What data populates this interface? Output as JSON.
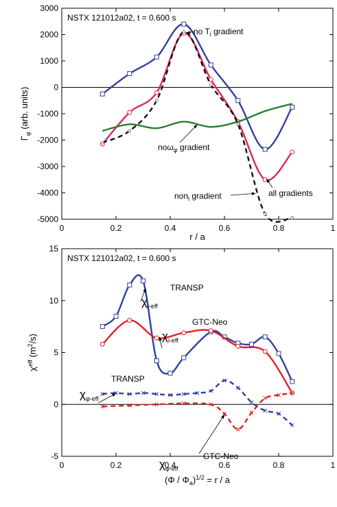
{
  "chart_data": [
    {
      "type": "line",
      "title": "NSTX 121012a02, t = 0.600 s",
      "xlabel": "r / a",
      "ylabel": "Γφ (arb. units)",
      "xlim": [
        0,
        1
      ],
      "ylim": [
        -5000,
        3000
      ],
      "xticks": [
        "0",
        "0.2",
        "0.4",
        "0.6",
        "0.8",
        "1"
      ],
      "yticks": [
        "3000",
        "2000",
        "1000",
        "0",
        "-1000",
        "-2000",
        "-3000",
        "-4000",
        "-5000"
      ],
      "grid": false,
      "series": [
        {
          "name": "no Ti gradient",
          "color": "#2e3f9f",
          "marker": "square",
          "dash": false,
          "x": [
            0.15,
            0.25,
            0.35,
            0.45,
            0.55,
            0.65,
            0.75,
            0.85
          ],
          "y": [
            -250,
            520,
            1150,
            2400,
            850,
            -500,
            -2350,
            -750
          ]
        },
        {
          "name": "all gradients",
          "color": "#e0245e",
          "marker": "circle",
          "dash": false,
          "x": [
            0.15,
            0.25,
            0.35,
            0.45,
            0.55,
            0.65,
            0.75,
            0.85
          ],
          "y": [
            -2150,
            -950,
            -200,
            2050,
            300,
            -1300,
            -3500,
            -2450
          ]
        },
        {
          "name": "noωφ gradient",
          "color": "#2e7d32",
          "marker": "none",
          "dash": false,
          "x": [
            0.15,
            0.25,
            0.35,
            0.45,
            0.55,
            0.65,
            0.75,
            0.85
          ],
          "y": [
            -1650,
            -1400,
            -1550,
            -1300,
            -1500,
            -1300,
            -900,
            -620
          ]
        },
        {
          "name": "noni gradient",
          "color": "#111111",
          "marker": "small-circle",
          "dash": true,
          "x": [
            0.15,
            0.25,
            0.35,
            0.45,
            0.55,
            0.65,
            0.75,
            0.85
          ],
          "y": [
            -2100,
            -1650,
            -500,
            2100,
            100,
            -1400,
            -4800,
            -4950
          ]
        }
      ],
      "annotations": [
        {
          "text": "no T",
          "sub": "i",
          "rest": " gradient",
          "ax": 0.45,
          "ay": 2050
        },
        {
          "text": "no",
          "sub": "",
          "rest": "ω",
          "sub2": "φ",
          "rest2": " gradient",
          "ax": 0.5,
          "ay": -1400
        },
        {
          "text": "non",
          "sub": "i",
          "rest": " gradient",
          "ax": 0.72,
          "ay": -4000
        },
        {
          "text": "all gradients",
          "ax": 0.75,
          "ay": -3480
        }
      ]
    },
    {
      "type": "line",
      "title": "NSTX 121012a02, t = 0.600 s",
      "xlabel": "(Φ / Φa)1/2 = r / a",
      "ylabel": "χeff (m2/s)",
      "xlim": [
        0,
        1
      ],
      "ylim": [
        -5,
        15
      ],
      "xticks": [
        "0",
        "0.2",
        "0.4",
        "0.6",
        "0.8",
        "1"
      ],
      "yticks": [
        "15",
        "10",
        "5",
        "0",
        "-5"
      ],
      "grid": false,
      "series": [
        {
          "name": "χi-eff TRANSP",
          "color": "#2e3f9f",
          "marker": "square",
          "dash": false,
          "x": [
            0.15,
            0.2,
            0.25,
            0.3,
            0.35,
            0.4,
            0.45,
            0.55,
            0.6,
            0.65,
            0.7,
            0.75,
            0.8,
            0.85
          ],
          "y": [
            7.5,
            8.5,
            11.5,
            11.9,
            4.2,
            3.0,
            4.5,
            7.0,
            6.5,
            5.9,
            5.8,
            6.5,
            4.9,
            2.2
          ]
        },
        {
          "name": "χi-eff GTC-Neo",
          "color": "#e02020",
          "marker": "circle",
          "dash": false,
          "x": [
            0.15,
            0.25,
            0.35,
            0.45,
            0.55,
            0.65,
            0.75,
            0.85
          ],
          "y": [
            5.8,
            8.1,
            6.4,
            6.9,
            7.1,
            5.6,
            5.1,
            1.1
          ]
        },
        {
          "name": "χφ-eff TRANSP",
          "color": "#2e3f9f",
          "marker": "x",
          "dash": true,
          "x": [
            0.15,
            0.2,
            0.25,
            0.3,
            0.35,
            0.4,
            0.45,
            0.5,
            0.55,
            0.6,
            0.65,
            0.7,
            0.75,
            0.8,
            0.85
          ],
          "y": [
            1.0,
            1.1,
            1.0,
            1.1,
            1.0,
            0.9,
            1.0,
            1.1,
            1.3,
            2.3,
            1.6,
            0.2,
            -0.6,
            -0.9,
            -2.0
          ]
        },
        {
          "name": "χφ-eff GTC-Neo",
          "color": "#e02020",
          "marker": "x",
          "dash": true,
          "x": [
            0.15,
            0.25,
            0.35,
            0.45,
            0.55,
            0.6,
            0.65,
            0.7,
            0.75,
            0.8,
            0.85
          ],
          "y": [
            -0.2,
            -0.1,
            0.0,
            0.1,
            0.0,
            -0.9,
            -2.4,
            -0.8,
            0.6,
            0.9,
            1.1
          ]
        }
      ],
      "labels": [
        {
          "main": "χ",
          "sub": "i-eff",
          "sup": "TRANSP"
        },
        {
          "main": "χ",
          "sub": "i-eff",
          "sup": "GTC-Neo"
        },
        {
          "main": "χ",
          "sub": "φ-eff",
          "sup": "TRANSP"
        },
        {
          "main": "χ",
          "sub": "φ-eff",
          "sup": "GTC-Neo"
        }
      ]
    }
  ]
}
